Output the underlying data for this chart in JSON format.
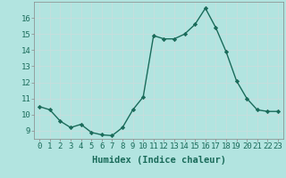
{
  "x": [
    0,
    1,
    2,
    3,
    4,
    5,
    6,
    7,
    8,
    9,
    10,
    11,
    12,
    13,
    14,
    15,
    16,
    17,
    18,
    19,
    20,
    21,
    22,
    23
  ],
  "y": [
    10.5,
    10.3,
    9.6,
    9.2,
    9.4,
    8.9,
    8.75,
    8.7,
    9.2,
    10.3,
    11.1,
    14.9,
    14.7,
    14.7,
    15.0,
    15.6,
    16.6,
    15.4,
    13.9,
    12.1,
    11.0,
    10.3,
    10.2,
    10.2
  ],
  "line_color": "#1a6b5a",
  "bg_color": "#b2e4e0",
  "grid_color": "#c8dedd",
  "xlabel": "Humidex (Indice chaleur)",
  "ylim": [
    8.5,
    17.0
  ],
  "xlim": [
    -0.5,
    23.5
  ],
  "yticks": [
    9,
    10,
    11,
    12,
    13,
    14,
    15,
    16
  ],
  "xtick_labels": [
    "0",
    "1",
    "2",
    "3",
    "4",
    "5",
    "6",
    "7",
    "8",
    "9",
    "10",
    "11",
    "12",
    "13",
    "14",
    "15",
    "16",
    "17",
    "18",
    "19",
    "20",
    "21",
    "22",
    "23"
  ],
  "tick_fontsize": 6.5,
  "label_fontsize": 7.5
}
